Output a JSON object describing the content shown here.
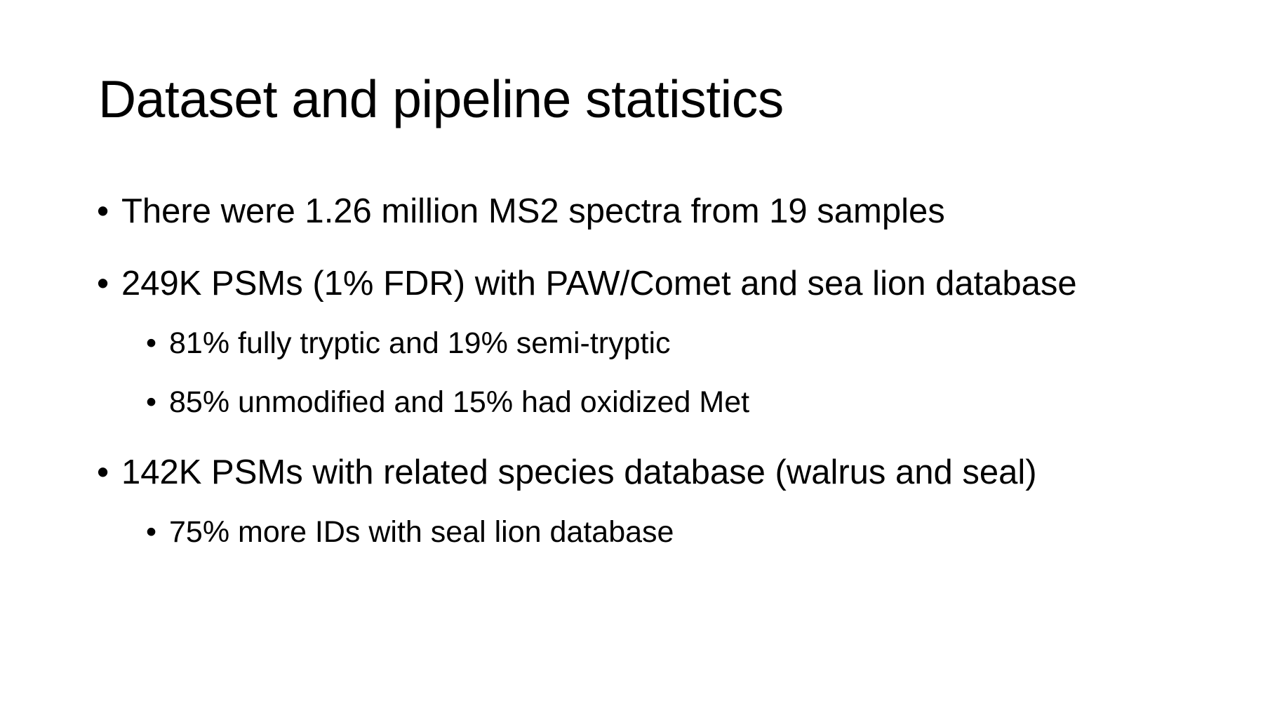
{
  "slide": {
    "title": "Dataset and pipeline statistics",
    "bullet_glyph": "•",
    "bullets": [
      {
        "text": "There were 1.26 million MS2 spectra from 19 samples"
      },
      {
        "text": "249K PSMs (1% FDR) with PAW/Comet and sea lion database"
      },
      {
        "text": "81% fully tryptic and 19% semi-tryptic"
      },
      {
        "text": "85% unmodified and 15% had oxidized Met"
      },
      {
        "text": "142K PSMs with related species database (walrus and seal)"
      },
      {
        "text": "75% more IDs with seal lion database"
      }
    ],
    "colors": {
      "background": "#ffffff",
      "text": "#000000"
    }
  }
}
